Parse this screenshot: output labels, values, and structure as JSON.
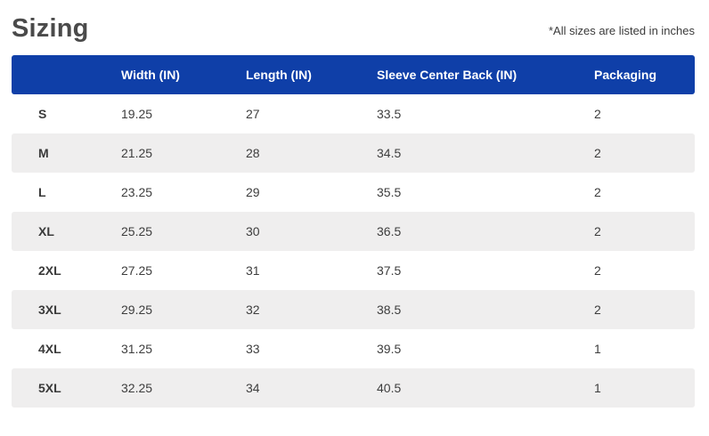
{
  "header": {
    "title": "Sizing",
    "note": "*All sizes are listed in inches"
  },
  "table": {
    "columns": [
      "",
      "Width (IN)",
      "Length (IN)",
      "Sleeve Center Back (IN)",
      "Packaging"
    ],
    "rows": [
      [
        "S",
        "19.25",
        "27",
        "33.5",
        "2"
      ],
      [
        "M",
        "21.25",
        "28",
        "34.5",
        "2"
      ],
      [
        "L",
        "23.25",
        "29",
        "35.5",
        "2"
      ],
      [
        "XL",
        "25.25",
        "30",
        "36.5",
        "2"
      ],
      [
        "2XL",
        "27.25",
        "31",
        "37.5",
        "2"
      ],
      [
        "3XL",
        "29.25",
        "32",
        "38.5",
        "2"
      ],
      [
        "4XL",
        "31.25",
        "33",
        "39.5",
        "1"
      ],
      [
        "5XL",
        "32.25",
        "34",
        "40.5",
        "1"
      ]
    ]
  },
  "colors": {
    "header_bg": "#0f3fa8",
    "stripe_bg": "#efeeee"
  }
}
